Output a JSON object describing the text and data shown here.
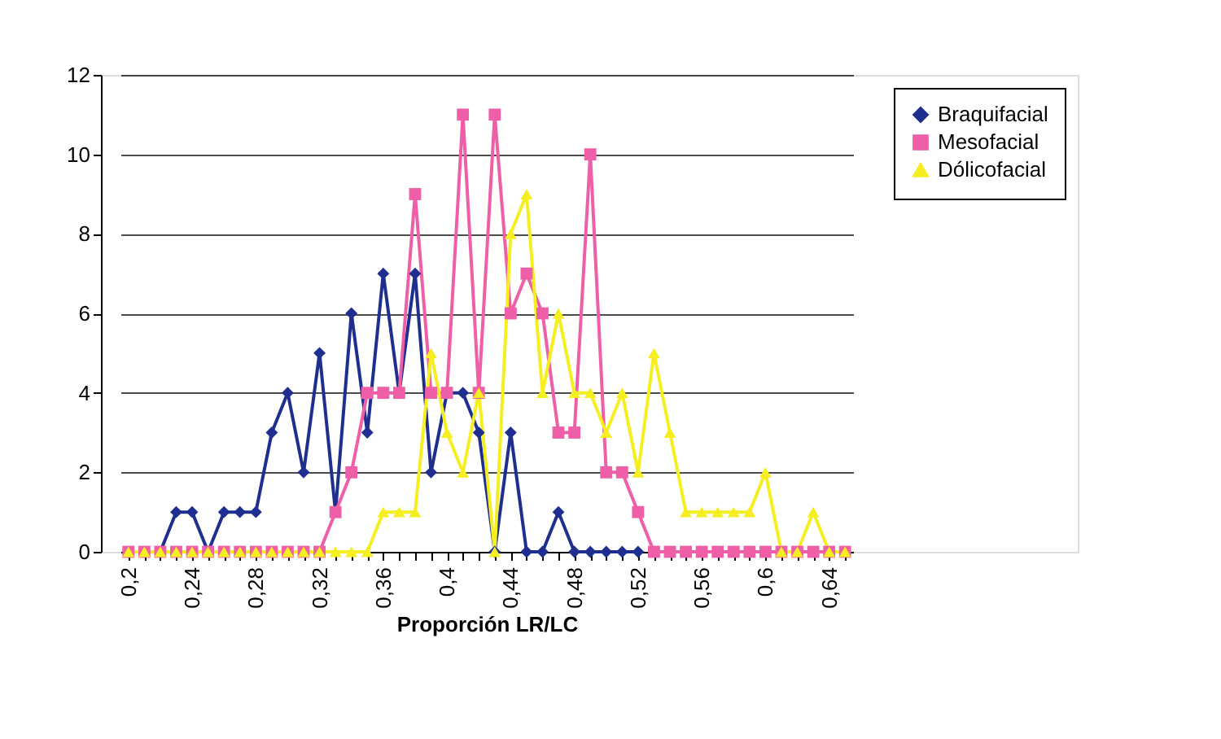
{
  "chart_data": {
    "type": "line",
    "xlabel": "Proporción LR/LC",
    "categories": [
      "0,2",
      null,
      null,
      null,
      "0,24",
      null,
      null,
      null,
      "0,28",
      null,
      null,
      null,
      "0,32",
      null,
      null,
      null,
      "0,36",
      null,
      null,
      null,
      "0,4",
      null,
      null,
      null,
      "0,44",
      null,
      null,
      null,
      "0,48",
      null,
      null,
      null,
      "0,52",
      null,
      null,
      null,
      "0,56",
      null,
      null,
      null,
      "0,6",
      null,
      null,
      null,
      "0,64",
      null
    ],
    "ylim": [
      0,
      12
    ],
    "yticks": [
      0,
      2,
      4,
      6,
      8,
      10,
      12
    ],
    "grid": "y",
    "legend": "top right",
    "series": [
      {
        "name": "Braquifacial",
        "color": "#1f2f8f",
        "marker": "diamond",
        "values": [
          0,
          0,
          0,
          1,
          1,
          0,
          1,
          1,
          1,
          3,
          4,
          2,
          5,
          1,
          6,
          3,
          7,
          4,
          7,
          2,
          4,
          4,
          3,
          0,
          3,
          0,
          0,
          1,
          0,
          0,
          0,
          0,
          0,
          null,
          null,
          null,
          null,
          null,
          null,
          null,
          null,
          null,
          null,
          null,
          null,
          null
        ]
      },
      {
        "name": "Mesofacial",
        "color": "#ee5fa8",
        "marker": "square",
        "values": [
          0,
          0,
          0,
          0,
          0,
          0,
          0,
          0,
          0,
          0,
          0,
          0,
          0,
          1,
          2,
          4,
          4,
          4,
          9,
          4,
          4,
          11,
          4,
          11,
          6,
          7,
          6,
          3,
          3,
          10,
          2,
          2,
          1,
          0,
          0,
          0,
          0,
          0,
          0,
          0,
          0,
          0,
          0,
          0,
          0,
          0
        ]
      },
      {
        "name": "Dólicofacial",
        "color": "#f5ee20",
        "marker": "triangle",
        "values": [
          0,
          0,
          0,
          0,
          0,
          0,
          0,
          0,
          0,
          0,
          0,
          0,
          0,
          0,
          0,
          0,
          1,
          1,
          1,
          5,
          3,
          2,
          4,
          0,
          8,
          9,
          4,
          6,
          4,
          4,
          3,
          4,
          2,
          5,
          3,
          1,
          1,
          1,
          1,
          1,
          2,
          0,
          0,
          1,
          0,
          0
        ]
      }
    ]
  }
}
